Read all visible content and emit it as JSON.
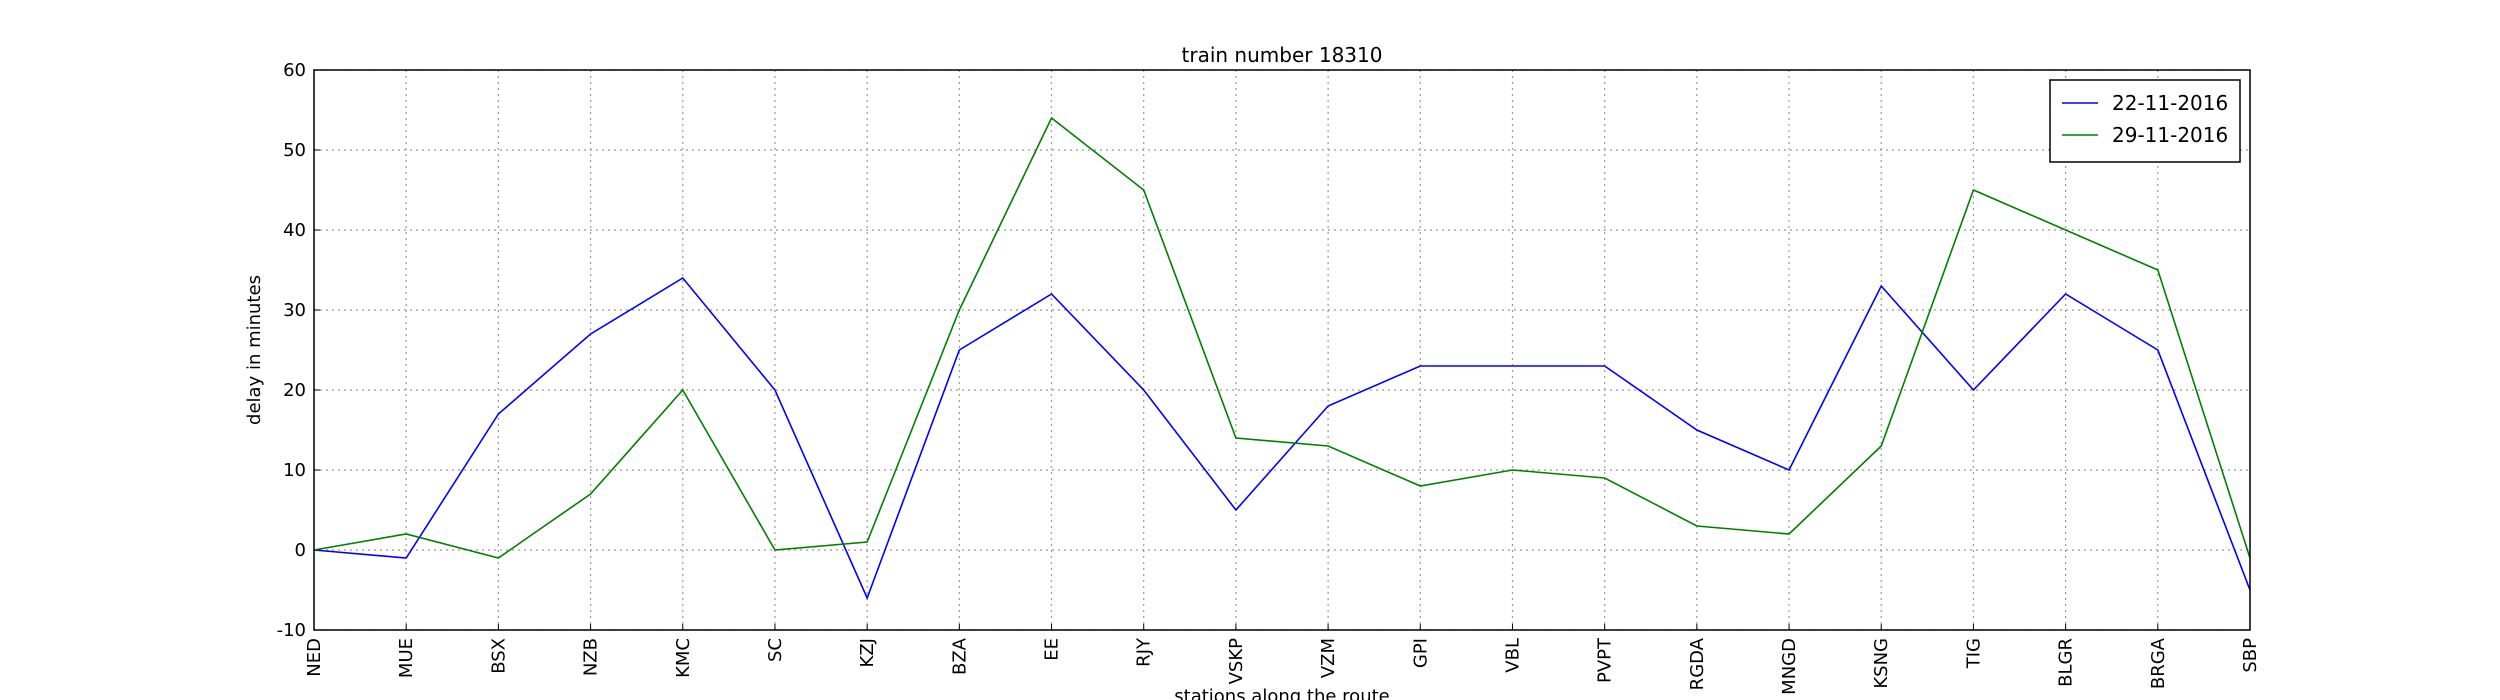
{
  "chart_data": {
    "type": "line",
    "title": "train number 18310",
    "xlabel": "stations along the route",
    "ylabel": "delay in minutes",
    "categories": [
      "NED",
      "MUE",
      "BSX",
      "NZB",
      "KMC",
      "SC",
      "KZJ",
      "BZA",
      "EE",
      "RJY",
      "VSKP",
      "VZM",
      "GPI",
      "VBL",
      "PVPT",
      "RGDA",
      "MNGD",
      "KSNG",
      "TIG",
      "BLGR",
      "BRGA",
      "SBP"
    ],
    "series": [
      {
        "name": "22-11-2016",
        "color": "#0000ff",
        "values": [
          0,
          -1,
          17,
          27,
          34,
          20,
          -6,
          25,
          32,
          20,
          5,
          18,
          23,
          23,
          23,
          15,
          10,
          33,
          20,
          32,
          25,
          -5
        ]
      },
      {
        "name": "29-11-2016",
        "color": "#008000",
        "values": [
          0,
          2,
          -1,
          7,
          20,
          0,
          1,
          30,
          54,
          45,
          14,
          13,
          8,
          10,
          9,
          3,
          2,
          13,
          45,
          40,
          35,
          -1
        ]
      }
    ],
    "ylim": [
      -10,
      60
    ],
    "yticks": [
      -10,
      0,
      10,
      20,
      30,
      40,
      50,
      60
    ],
    "grid": true,
    "legend": "upper right"
  }
}
